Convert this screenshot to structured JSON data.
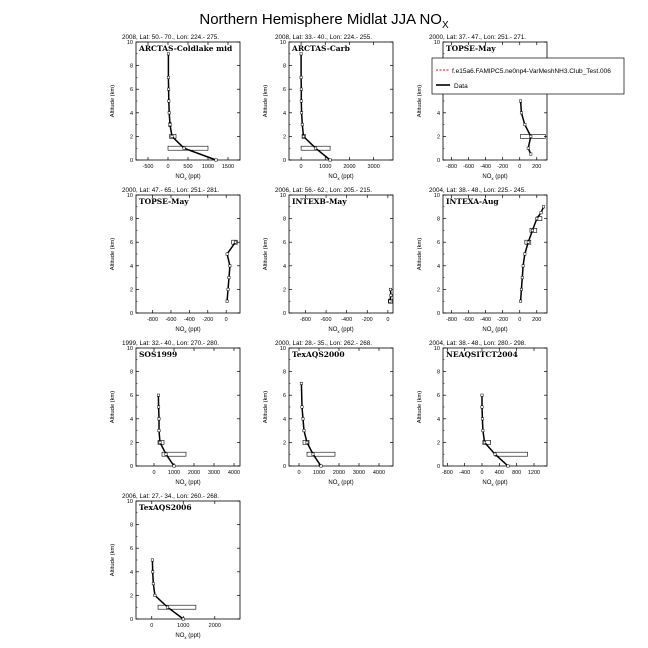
{
  "figure": {
    "title_main": "Northern Hemisphere Midlat JJA NO",
    "title_sub": "X"
  },
  "legend": {
    "model_label": "f.e15a6.FAMIPC5.ne0np4-VarMeshNH3.Club_Test.006",
    "data_label": "Data",
    "model_color": "#ff0000",
    "data_color": "#000000"
  },
  "chart_data": [
    {
      "type": "line",
      "name": "ARCTAS-Coldlake mid",
      "header": "2008, Lat: 50.- 70., Lon: 224.- 275.",
      "xlabel_main": "NO",
      "xlabel_sub": "x",
      "xlabel_unit": " (ppt)",
      "ylabel": "Altitude (km)",
      "xlim": [
        -800,
        1800
      ],
      "ylim": [
        0,
        10
      ],
      "xticks": [
        -500,
        0,
        500,
        1000,
        1500
      ],
      "yticks": [
        0,
        2,
        4,
        6,
        8,
        10
      ],
      "data_x": [
        1200,
        400,
        100,
        50,
        30,
        20,
        15,
        10,
        10
      ],
      "data_y": [
        0,
        1,
        2,
        3,
        4,
        5,
        6,
        7,
        9
      ],
      "bars": [
        {
          "y": 1,
          "xmin": 0,
          "xmax": 1000
        },
        {
          "y": 2,
          "xmin": 40,
          "xmax": 200
        },
        {
          "y": 3,
          "xmin": 20,
          "xmax": 80
        }
      ]
    },
    {
      "type": "line",
      "name": "ARCTAS-Carb",
      "header": "2008, Lat: 33.- 40., Lon: 224.- 255.",
      "xlabel_main": "NO",
      "xlabel_sub": "x",
      "xlabel_unit": " (ppt)",
      "ylabel": "Altitude (km)",
      "xlim": [
        -500,
        3800
      ],
      "ylim": [
        0,
        10
      ],
      "xticks": [
        0,
        1000,
        2000,
        3000
      ],
      "yticks": [
        0,
        2,
        4,
        6,
        8,
        10
      ],
      "data_x": [
        1200,
        600,
        100,
        50,
        20,
        10,
        10,
        0,
        0
      ],
      "data_y": [
        0,
        1,
        2,
        3,
        4,
        5,
        6,
        7,
        9
      ],
      "bars": [
        {
          "y": 1,
          "xmin": 0,
          "xmax": 1200
        },
        {
          "y": 2,
          "xmin": 40,
          "xmax": 180
        }
      ]
    },
    {
      "type": "line",
      "name": "TOPSE-May",
      "header": "2000, Lat: 37.- 47., Lon: 251.- 271.",
      "xlabel_main": "NO",
      "xlabel_sub": "x",
      "xlabel_unit": " (ppt)",
      "ylabel": "Altitude (km)",
      "xlim": [
        -900,
        320
      ],
      "ylim": [
        0,
        10
      ],
      "xticks": [
        -800,
        -600,
        -400,
        -200,
        0,
        200
      ],
      "yticks": [
        0,
        2,
        4,
        6,
        8,
        10
      ],
      "data_x": [
        130,
        100,
        130,
        60,
        20,
        10
      ],
      "data_y": [
        0.5,
        1,
        2,
        3,
        4,
        5
      ],
      "bars": [
        {
          "y": 2,
          "xmin": 10,
          "xmax": 300
        }
      ]
    },
    {
      "type": "line",
      "name": "TOPSE-May",
      "header": "2000, Lat: 47.- 65., Lon: 251.- 281.",
      "xlabel_main": "NO",
      "xlabel_sub": "x",
      "xlabel_unit": " (ppt)",
      "ylabel": "Altitude (km)",
      "xlim": [
        -980,
        150
      ],
      "ylim": [
        0,
        10
      ],
      "xticks": [
        -800,
        -600,
        -400,
        -200,
        0
      ],
      "yticks": [
        0,
        2,
        4,
        6,
        8,
        10
      ],
      "data_x": [
        10,
        20,
        30,
        40,
        10,
        100
      ],
      "data_y": [
        1,
        2,
        3,
        4,
        5,
        6
      ],
      "bars": [
        {
          "y": 6,
          "xmin": 60,
          "xmax": 120
        }
      ]
    },
    {
      "type": "line",
      "name": "INTEXB-May",
      "header": "2006, Lat: 56.- 62., Lon: 205.- 215.",
      "xlabel_main": "NO",
      "xlabel_sub": "x",
      "xlabel_unit": " (ppt)",
      "ylabel": "Altitude (km)",
      "xlim": [
        -960,
        50
      ],
      "ylim": [
        0,
        10
      ],
      "xticks": [
        -800,
        -600,
        -400,
        -200,
        0
      ],
      "yticks": [
        0,
        2,
        4,
        6,
        8,
        10
      ],
      "data_x": [
        20,
        30,
        25
      ],
      "data_y": [
        1,
        1.5,
        2
      ],
      "bars": [
        {
          "y": 1,
          "xmin": 5,
          "xmax": 45
        }
      ]
    },
    {
      "type": "line",
      "name": "INTEXA-Aug",
      "header": "2004, Lat: 38.- 48., Lon: 225.- 245.",
      "xlabel_main": "NO",
      "xlabel_sub": "x",
      "xlabel_unit": " (ppt)",
      "ylabel": "Altitude (km)",
      "xlim": [
        -900,
        320
      ],
      "ylim": [
        0,
        10
      ],
      "xticks": [
        -800,
        -600,
        -400,
        -200,
        0,
        200
      ],
      "yticks": [
        0,
        2,
        4,
        6,
        8,
        10
      ],
      "data_x": [
        10,
        20,
        30,
        40,
        60,
        100,
        150,
        200,
        250,
        280
      ],
      "data_y": [
        1,
        2,
        3,
        4,
        5,
        6,
        7,
        8,
        8.5,
        9
      ],
      "bars": [
        {
          "y": 6,
          "xmin": 60,
          "xmax": 130
        },
        {
          "y": 7,
          "xmin": 120,
          "xmax": 200
        },
        {
          "y": 8,
          "xmin": 200,
          "xmax": 260
        }
      ]
    },
    {
      "type": "line",
      "name": "SOS1999",
      "header": "1999, Lat: 32.- 40., Lon: 270.- 280.",
      "xlabel_main": "NO",
      "xlabel_sub": "x",
      "xlabel_unit": " (ppt)",
      "ylabel": "Altitude (km)",
      "xlim": [
        -900,
        4300
      ],
      "ylim": [
        0,
        10
      ],
      "xticks": [
        0,
        1000,
        2000,
        3000,
        4000
      ],
      "yticks": [
        0,
        2,
        4,
        6,
        8,
        10
      ],
      "data_x": [
        1000,
        600,
        300,
        250,
        250,
        230,
        220
      ],
      "data_y": [
        0,
        1,
        2,
        3,
        4,
        5,
        6
      ],
      "bars": [
        {
          "y": 1,
          "xmin": 400,
          "xmax": 1600
        },
        {
          "y": 2,
          "xmin": 200,
          "xmax": 500
        }
      ]
    },
    {
      "type": "line",
      "name": "TexAQS2000",
      "header": "2000, Lat: 28.- 35., Lon: 262.- 268.",
      "xlabel_main": "NO",
      "xlabel_sub": "x",
      "xlabel_unit": " (ppt)",
      "ylabel": "Altitude (km)",
      "xlim": [
        -500,
        4700
      ],
      "ylim": [
        0,
        10
      ],
      "xticks": [
        0,
        1000,
        2000,
        3000,
        4000
      ],
      "yticks": [
        0,
        2,
        4,
        6,
        8,
        10
      ],
      "data_x": [
        1100,
        700,
        400,
        250,
        200,
        150,
        120
      ],
      "data_y": [
        0,
        1,
        2,
        3,
        4,
        5,
        7
      ],
      "bars": [
        {
          "y": 1,
          "xmin": 400,
          "xmax": 1800
        },
        {
          "y": 2,
          "xmin": 200,
          "xmax": 500
        }
      ]
    },
    {
      "type": "line",
      "name": "NEAQSITCT2004",
      "header": "2004, Lat: 38.- 48., Lon: 280.- 298.",
      "xlabel_main": "NO",
      "xlabel_sub": "x",
      "xlabel_unit": " (ppt)",
      "ylabel": "Altitude (km)",
      "xlim": [
        -900,
        1500
      ],
      "ylim": [
        0,
        10
      ],
      "xticks": [
        -800,
        -400,
        0,
        400,
        800,
        1200
      ],
      "yticks": [
        0,
        2,
        4,
        6,
        8,
        10
      ],
      "data_x": [
        600,
        300,
        60,
        20,
        10,
        0,
        0
      ],
      "data_y": [
        0,
        1,
        2,
        3,
        4,
        5,
        6
      ],
      "bars": [
        {
          "y": 1,
          "xmin": 300,
          "xmax": 1050
        },
        {
          "y": 2,
          "xmin": 20,
          "xmax": 200
        }
      ]
    },
    {
      "type": "line",
      "name": "TexAQS2006",
      "header": "2006, Lat: 27.- 34., Lon: 260.- 268.",
      "xlabel_main": "NO",
      "xlabel_sub": "x",
      "xlabel_unit": " (ppt)",
      "ylabel": "Altitude (km)",
      "xlim": [
        -500,
        2800
      ],
      "ylim": [
        0,
        10
      ],
      "xticks": [
        0,
        1000,
        2000
      ],
      "yticks": [
        0,
        2,
        4,
        6,
        8,
        10
      ],
      "data_x": [
        1000,
        500,
        100,
        50,
        30,
        20
      ],
      "data_y": [
        0,
        1,
        2,
        3,
        4,
        5
      ],
      "bars": [
        {
          "y": 1,
          "xmin": 200,
          "xmax": 1400
        }
      ]
    }
  ]
}
